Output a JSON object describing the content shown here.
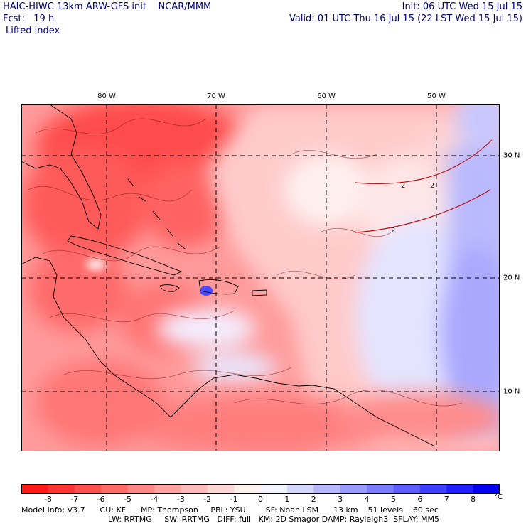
{
  "header": {
    "left_line1": "HAIC-HIWC 13km ARW-GFS init    NCAR/MMM",
    "left_line2": "Fcst:   19 h",
    "field_name": "Lifted index",
    "right_line1": "Init: 06 UTC Wed 15 Jul 15",
    "right_line2": "Valid: 01 UTC Thu 16 Jul 15 (22 LST Wed 15 Jul 15)"
  },
  "map": {
    "longitude_labels": [
      "80 W",
      "70 W",
      "60 W",
      "50 W"
    ],
    "latitude_labels": [
      "30 N",
      "20 N",
      "10 N"
    ],
    "contour_label": "2",
    "regions": [
      {
        "name": "land-area",
        "label": "Florida and Southeast US"
      },
      {
        "name": "land-area",
        "label": "Cuba and Greater Antilles"
      },
      {
        "name": "land-area",
        "label": "Central America"
      },
      {
        "name": "land-area",
        "label": "South America coast"
      }
    ]
  },
  "colorbar": {
    "labels": [
      "-8",
      "-7",
      "-6",
      "-5",
      "-4",
      "-3",
      "-2",
      "-1",
      "0",
      "1",
      "2",
      "3",
      "4",
      "5",
      "6",
      "7",
      "8"
    ],
    "unit": "°C",
    "colors": [
      "#ff1a1a",
      "#ff3535",
      "#ff5050",
      "#ff6b6b",
      "#ff8787",
      "#ffa3a3",
      "#ffbcbc",
      "#ffd6d6",
      "#fff0f0",
      "#f4f4ff",
      "#d6d6ff",
      "#b9b9ff",
      "#9b9bff",
      "#7d7dff",
      "#5e5eff",
      "#3f3fff",
      "#2020ff",
      "#0000ee"
    ]
  },
  "footer": {
    "line1": "Model Info: V3.7      CU: KF      MP: Thompson     PBL: YSU        SF: Noah LSM      13 km    51 levels    60 sec",
    "line2": "LW: RRTMG     SW: RRTMG   DIFF: full   KM: 2D Smagor DAMP: Rayleigh3  SFLAY: MM5"
  }
}
